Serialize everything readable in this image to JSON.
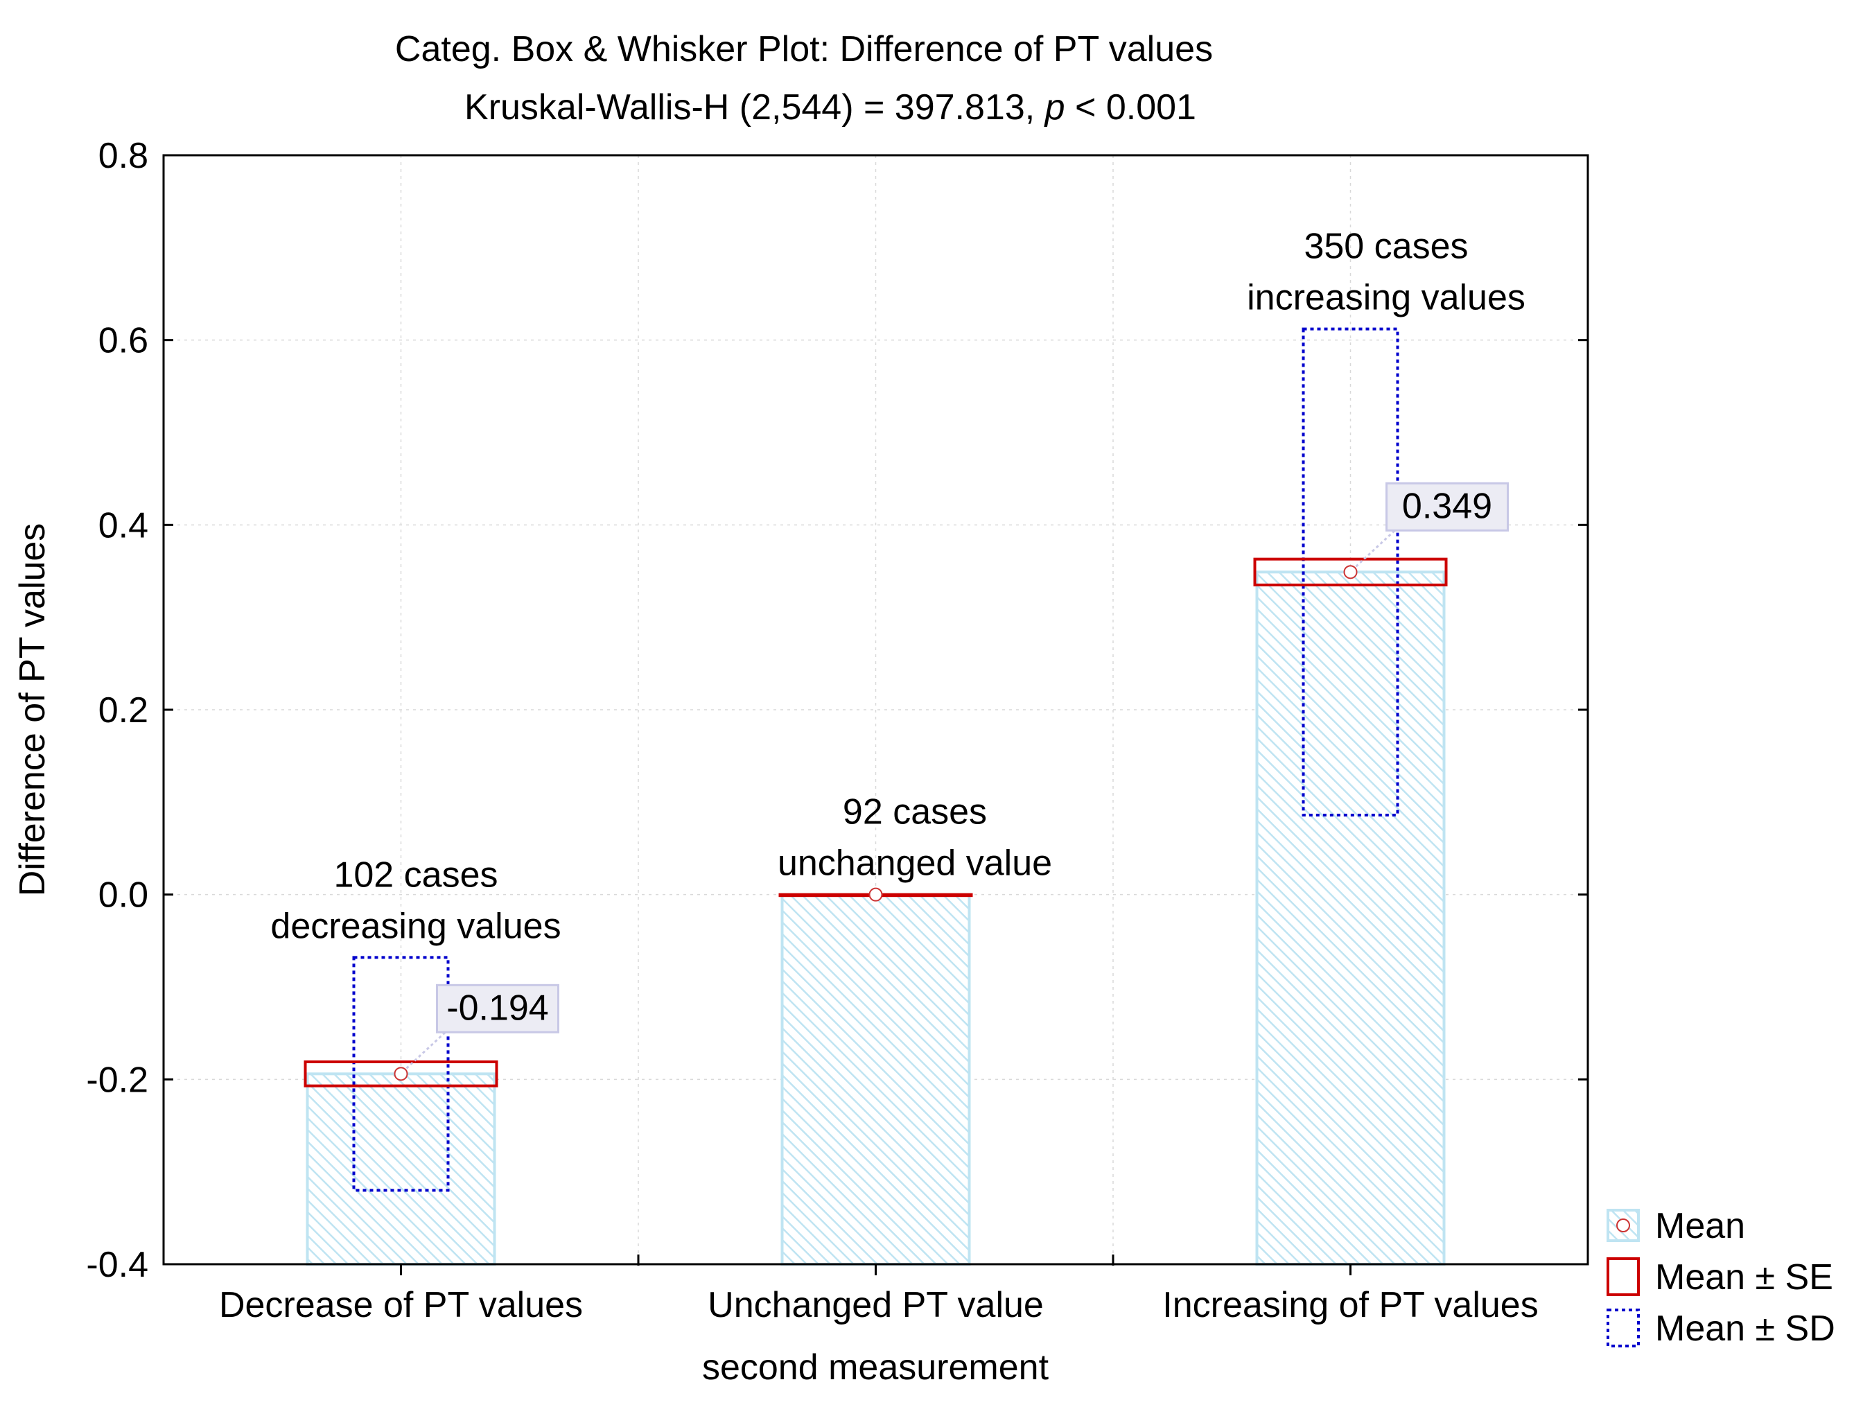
{
  "chart_data": {
    "type": "bar",
    "title": "Categ. Box & Whisker Plot: Difference of PT values",
    "subtitle_prefix": "Kruskal-Wallis-H (2,544) = 397.813, ",
    "subtitle_p": "p",
    "subtitle_suffix": " < 0.001",
    "xlabel": "second measurement",
    "ylabel": "Difference of PT values",
    "ylim": [
      -0.4,
      0.8
    ],
    "yticks": [
      -0.4,
      -0.2,
      0.0,
      0.2,
      0.4,
      0.6,
      0.8
    ],
    "ytick_labels": [
      "-0.4",
      "-0.2",
      "0.0",
      "0.2",
      "0.4",
      "0.6",
      "0.8"
    ],
    "grid": true,
    "legend_position": "bottom-right",
    "categories": [
      "Decrease of  PT values",
      "Unchanged PT value",
      "Increasing of  PT values"
    ],
    "mean": [
      -0.194,
      0.0,
      0.349
    ],
    "se": [
      0.013,
      0.0,
      0.014
    ],
    "sd": [
      0.126,
      0.0,
      0.263
    ],
    "mean_labels": [
      "-0.194",
      "",
      "0.349"
    ],
    "annotations": [
      [
        "102 cases",
        "decreasing values"
      ],
      [
        "92 cases",
        "unchanged value"
      ],
      [
        "350 cases",
        "increasing values"
      ]
    ],
    "legend": [
      "Mean",
      "Mean ± SE",
      "Mean ± SD"
    ]
  },
  "colors": {
    "bar_edge": "#bfe4f2",
    "bar_hatch": "#bfe4f2",
    "se": "#cc0000",
    "sd": "#0000cc",
    "mean_marker": "#cc3333",
    "label_box_fill": "#ececf4",
    "label_box_edge": "#c8c8e6",
    "grid": "#d9d9d9"
  }
}
